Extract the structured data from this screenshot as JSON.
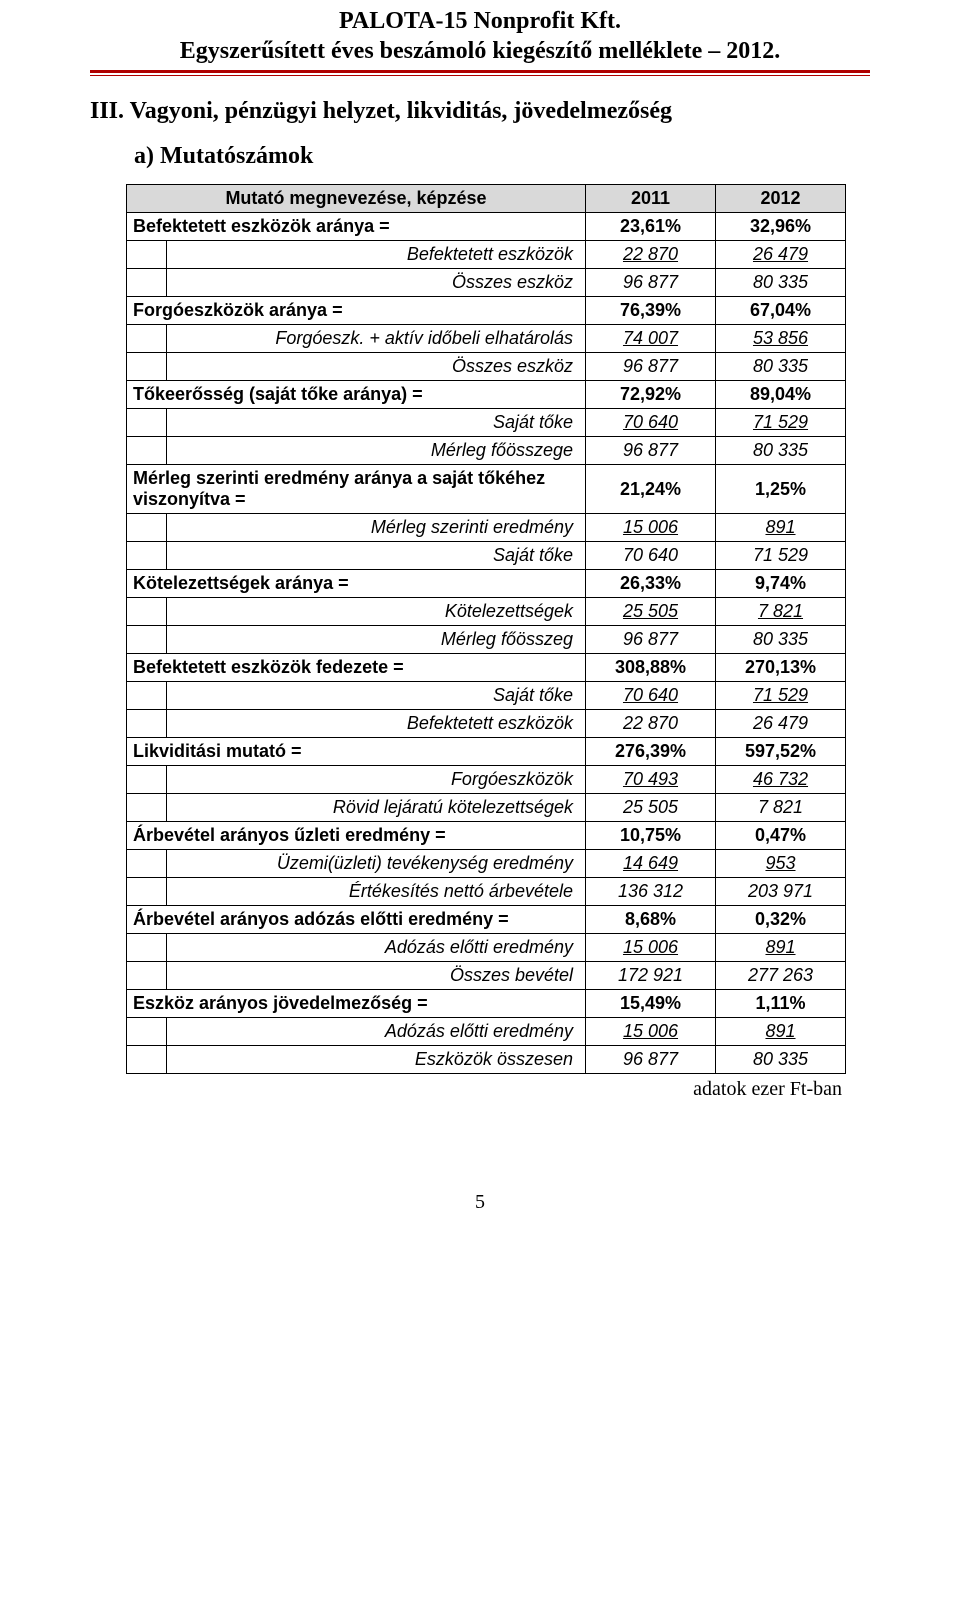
{
  "header": {
    "line1": "PALOTA-15 Nonprofit Kft.",
    "line2": "Egyszerűsített éves beszámoló kiegészítő melléklete – 2012."
  },
  "section_title": "III.  Vagyoni, pénzügyi helyzet, likviditás, jövedelmezőség",
  "subsection_title": "a)  Mutatószámok",
  "table": {
    "head": {
      "c0": "Mutató megnevezése, képzése",
      "c1": "2011",
      "c2": "2012"
    },
    "rows": [
      {
        "type": "main",
        "label": "Befektetett eszközök aránya =",
        "v1": "23,61%",
        "v2": "32,96%"
      },
      {
        "type": "subU",
        "label": "Befektetett eszközök",
        "v1": "22 870",
        "v2": "26 479"
      },
      {
        "type": "sub",
        "label": "Összes eszköz",
        "v1": "96 877",
        "v2": "80 335"
      },
      {
        "type": "main",
        "label": "Forgóeszközök aránya =",
        "v1": "76,39%",
        "v2": "67,04%"
      },
      {
        "type": "subU",
        "label": "Forgóeszk. + aktív időbeli elhatárolás",
        "v1": "74 007",
        "v2": "53 856"
      },
      {
        "type": "sub",
        "label": "Összes eszköz",
        "v1": "96 877",
        "v2": "80 335"
      },
      {
        "type": "main",
        "label": "Tőkeerősség (saját tőke aránya) =",
        "v1": "72,92%",
        "v2": "89,04%"
      },
      {
        "type": "subU",
        "label": "Saját tőke",
        "v1": "70 640",
        "v2": "71 529"
      },
      {
        "type": "sub",
        "label": "Mérleg főösszege",
        "v1": "96 877",
        "v2": "80 335"
      },
      {
        "type": "main",
        "label": "Mérleg szerinti eredmény aránya a saját tőkéhez viszonyítva =",
        "v1": "21,24%",
        "v2": "1,25%"
      },
      {
        "type": "subU",
        "label": "Mérleg szerinti eredmény",
        "v1": "15 006",
        "v2": "891"
      },
      {
        "type": "sub",
        "label": "Saját tőke",
        "v1": "70 640",
        "v2": "71 529"
      },
      {
        "type": "main",
        "label": "Kötelezettségek aránya =",
        "v1": "26,33%",
        "v2": "9,74%"
      },
      {
        "type": "subU",
        "label": "Kötelezettségek",
        "v1": "25 505",
        "v2": "7 821"
      },
      {
        "type": "sub",
        "label": "Mérleg főösszeg",
        "v1": "96 877",
        "v2": "80 335"
      },
      {
        "type": "main",
        "label": "Befektetett eszközök fedezete =",
        "v1": "308,88%",
        "v2": "270,13%"
      },
      {
        "type": "subU",
        "label": "Saját tőke",
        "v1": "70 640",
        "v2": "71 529"
      },
      {
        "type": "sub",
        "label": "Befektetett eszközök",
        "v1": "22 870",
        "v2": "26 479"
      },
      {
        "type": "main",
        "label": "Likviditási mutató =",
        "v1": "276,39%",
        "v2": "597,52%"
      },
      {
        "type": "subU",
        "label": "Forgóeszközök",
        "v1": "70 493",
        "v2": "46 732"
      },
      {
        "type": "sub",
        "label": "Rövid lejáratú kötelezettségek",
        "v1": "25 505",
        "v2": "7 821"
      },
      {
        "type": "main",
        "label": "Árbevétel arányos űzleti eredmény =",
        "v1": "10,75%",
        "v2": "0,47%"
      },
      {
        "type": "subU",
        "label": "Üzemi(üzleti) tevékenység eredmény",
        "v1": "14 649",
        "v2": "953"
      },
      {
        "type": "sub",
        "label": "Értékesítés nettó árbevétele",
        "v1": "136 312",
        "v2": "203 971"
      },
      {
        "type": "main",
        "label": "Árbevétel arányos adózás előtti eredmény =",
        "v1": "8,68%",
        "v2": "0,32%"
      },
      {
        "type": "subU",
        "label": "Adózás előtti eredmény",
        "v1": "15 006",
        "v2": "891"
      },
      {
        "type": "sub",
        "label": "Összes  bevétel",
        "v1": "172 921",
        "v2": "277 263"
      },
      {
        "type": "main",
        "label": "Eszköz arányos jövedelmezőség =",
        "v1": "15,49%",
        "v2": "1,11%"
      },
      {
        "type": "subU",
        "label": "Adózás előtti eredmény",
        "v1": "15 006",
        "v2": "891"
      },
      {
        "type": "sub",
        "label": "Eszközök összesen",
        "v1": "96 877",
        "v2": "80 335"
      }
    ]
  },
  "footnote": "adatok ezer Ft-ban",
  "page_number": "5",
  "colors": {
    "rule": "#b00000",
    "head_bg": "#d9d9d9",
    "text": "#000000",
    "bg": "#ffffff"
  }
}
